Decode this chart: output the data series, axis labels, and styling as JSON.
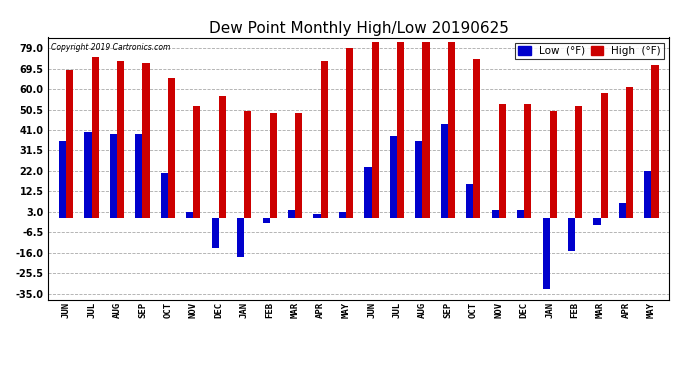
{
  "title": "Dew Point Monthly High/Low 20190625",
  "copyright": "Copyright 2019 Cartronics.com",
  "months": [
    "JUN",
    "JUL",
    "AUG",
    "SEP",
    "OCT",
    "NOV",
    "DEC",
    "JAN",
    "FEB",
    "MAR",
    "APR",
    "MAY",
    "JUN",
    "JUL",
    "AUG",
    "SEP",
    "OCT",
    "NOV",
    "DEC",
    "JAN",
    "FEB",
    "MAR",
    "APR",
    "MAY"
  ],
  "high_values": [
    69,
    75,
    73,
    72,
    65,
    52,
    57,
    50,
    49,
    49,
    73,
    79,
    82,
    82,
    82,
    82,
    74,
    53,
    53,
    50,
    52,
    58,
    61,
    71
  ],
  "low_values": [
    36,
    40,
    39,
    39,
    21,
    3,
    -14,
    -18,
    -2,
    4,
    2,
    3,
    24,
    38,
    36,
    44,
    16,
    4,
    4,
    -33,
    -15,
    -3,
    7,
    22
  ],
  "yticks": [
    79.0,
    69.5,
    60.0,
    50.5,
    41.0,
    31.5,
    22.0,
    12.5,
    3.0,
    -6.5,
    -16.0,
    -25.5,
    -35.0
  ],
  "bar_width": 0.28,
  "high_color": "#cc0000",
  "low_color": "#0000cc",
  "bg_color": "#ffffff",
  "grid_color": "#aaaaaa",
  "title_fontsize": 11,
  "legend_fontsize": 7.5
}
